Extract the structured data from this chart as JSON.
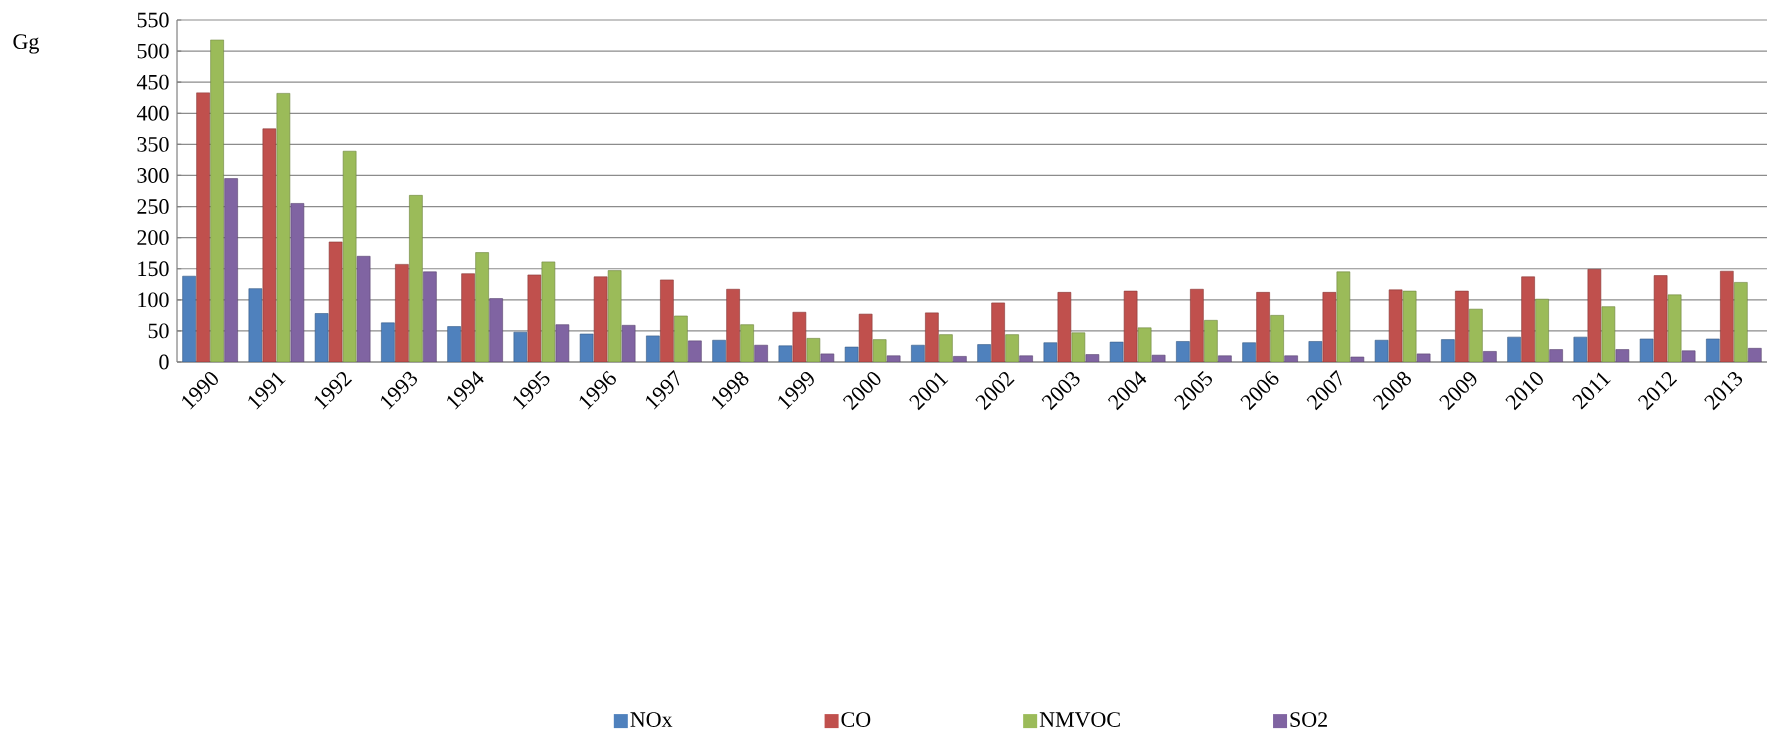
{
  "chart_data": {
    "type": "bar",
    "ylabel": "Gg",
    "categories": [
      "1990",
      "1991",
      "1992",
      "1993",
      "1994",
      "1995",
      "1996",
      "1997",
      "1998",
      "1999",
      "2000",
      "2001",
      "2002",
      "2003",
      "2004",
      "2005",
      "2006",
      "2007",
      "2008",
      "2009",
      "2010",
      "2011",
      "2012",
      "2013"
    ],
    "series": [
      {
        "name": "NOx",
        "color": "#4f81bd",
        "values": [
          138,
          118,
          78,
          63,
          57,
          48,
          45,
          42,
          35,
          26,
          24,
          27,
          28,
          31,
          32,
          33,
          31,
          33,
          35,
          36,
          40,
          40,
          37,
          37
        ]
      },
      {
        "name": "CO",
        "color": "#c0504d",
        "values": [
          433,
          375,
          193,
          157,
          142,
          140,
          137,
          132,
          117,
          80,
          77,
          79,
          95,
          112,
          114,
          117,
          112,
          112,
          116,
          114,
          137,
          149,
          139,
          146
        ]
      },
      {
        "name": "NMVOC",
        "color": "#9bbb59",
        "values": [
          518,
          432,
          339,
          268,
          176,
          161,
          147,
          74,
          60,
          38,
          36,
          44,
          44,
          47,
          55,
          67,
          75,
          145,
          114,
          85,
          101,
          89,
          108,
          128
        ]
      },
      {
        "name": "SO2",
        "color": "#8064a2",
        "values": [
          295,
          255,
          170,
          145,
          102,
          60,
          59,
          34,
          27,
          13,
          10,
          9,
          10,
          12,
          11,
          10,
          10,
          8,
          13,
          17,
          20,
          20,
          18,
          22
        ]
      }
    ],
    "ylim": [
      0,
      550
    ],
    "yticks": [
      0,
      50,
      100,
      150,
      200,
      250,
      300,
      350,
      400,
      450,
      500,
      550
    ],
    "grid": "y",
    "legend": "bottom"
  }
}
